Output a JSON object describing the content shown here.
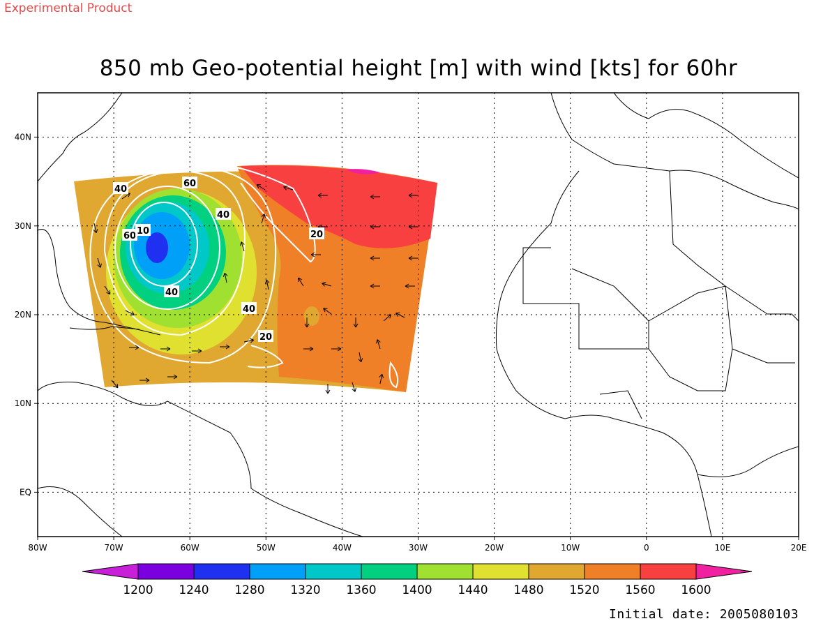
{
  "header": {
    "product_label": "Experimental Product",
    "title": "850 mb Geo-potential height [m] with wind [kts] for 60hr",
    "initial_date": "Initial date: 2005080103"
  },
  "map": {
    "lon_labels": [
      "80W",
      "70W",
      "60W",
      "50W",
      "40W",
      "30W",
      "20W",
      "10W",
      "0",
      "10E",
      "20E"
    ],
    "lat_labels": [
      "40N",
      "30N",
      "20N",
      "10N",
      "EQ"
    ],
    "lon_range": [
      -80,
      20
    ],
    "lat_range": [
      -5,
      45
    ],
    "wind_contour_labels": [
      "40",
      "60",
      "40",
      "60",
      "10",
      "40",
      "40",
      "20",
      "20"
    ]
  },
  "colorbar": {
    "ticks": [
      "1200",
      "1240",
      "1280",
      "1320",
      "1360",
      "1400",
      "1440",
      "1480",
      "1520",
      "1560",
      "1600"
    ],
    "colors": [
      "#c81fd8",
      "#7b00e0",
      "#2030f0",
      "#00a0f8",
      "#00c8c8",
      "#00d080",
      "#a0e030",
      "#e0e030",
      "#e0a830",
      "#f08028",
      "#f84040",
      "#f020a0"
    ]
  }
}
